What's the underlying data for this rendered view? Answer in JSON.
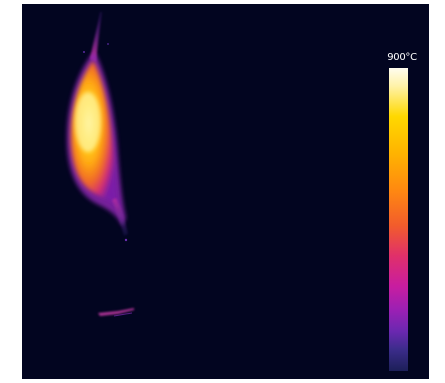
{
  "thermal_image": {
    "scale": {
      "max_label": "900°C",
      "palette": "ironbow",
      "colors": [
        "#fffdf0",
        "#ffd800",
        "#ff8a10",
        "#e0306a",
        "#9a20b4",
        "#3b2c8a",
        "#1c1f58"
      ]
    },
    "background_color": "#020520"
  }
}
